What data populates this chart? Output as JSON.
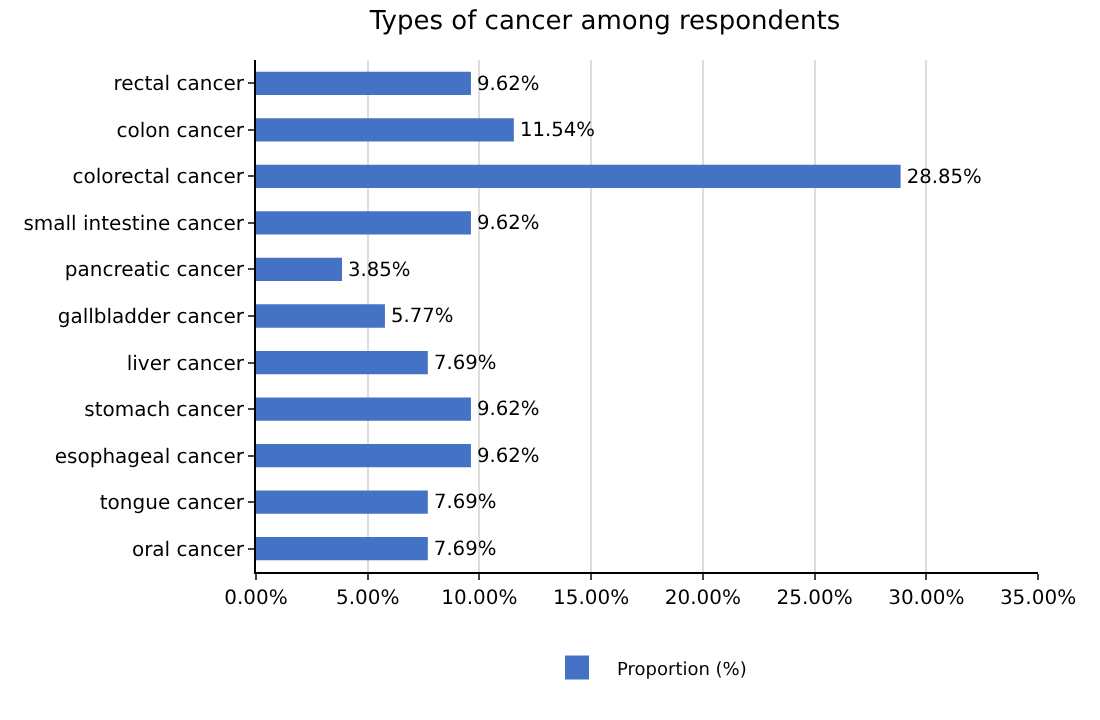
{
  "chart_data": {
    "type": "bar",
    "orientation": "horizontal",
    "title": "Types of cancer among respondents",
    "categories": [
      "rectal cancer",
      "colon cancer",
      "colorectal cancer",
      "small intestine cancer",
      "pancreatic cancer",
      "gallbladder cancer",
      "liver cancer",
      "stomach cancer",
      "esophageal cancer",
      "tongue cancer",
      "oral cancer"
    ],
    "series": [
      {
        "name": "Proportion (%)",
        "color": "#4472c4",
        "values": [
          9.62,
          11.54,
          28.85,
          9.62,
          3.85,
          5.77,
          7.69,
          9.62,
          9.62,
          7.69,
          7.69
        ],
        "value_labels": [
          "9.62%",
          "11.54%",
          "28.85%",
          "9.62%",
          "3.85%",
          "5.77%",
          "7.69%",
          "9.62%",
          "9.62%",
          "7.69%",
          "7.69%"
        ]
      }
    ],
    "xlim": [
      0,
      35
    ],
    "xticks": [
      {
        "value": 0,
        "label": "0.00%"
      },
      {
        "value": 5,
        "label": "5.00%"
      },
      {
        "value": 10,
        "label": "10.00%"
      },
      {
        "value": 15,
        "label": "15.00%"
      },
      {
        "value": 20,
        "label": "20.00%"
      },
      {
        "value": 25,
        "label": "25.00%"
      },
      {
        "value": 30,
        "label": "30.00%"
      },
      {
        "value": 35,
        "label": "35.00%"
      }
    ],
    "grid": "x",
    "legend": "bottom"
  }
}
